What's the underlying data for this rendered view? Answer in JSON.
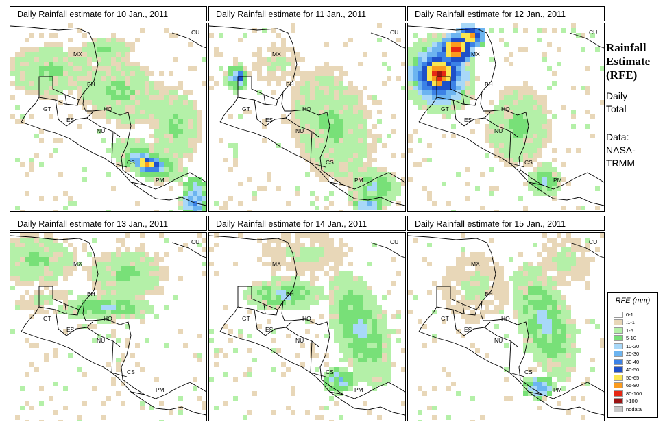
{
  "panels": [
    {
      "title": "Daily Rainfall estimate for  10 Jan., 2011"
    },
    {
      "title": "Daily Rainfall estimate for  11 Jan., 2011"
    },
    {
      "title": "Daily Rainfall estimate for  12 Jan., 2011"
    },
    {
      "title": "Daily Rainfall estimate for  13 Jan., 2011"
    },
    {
      "title": "Daily Rainfall estimate for  14 Jan., 2011"
    },
    {
      "title": "Daily Rainfall estimate for  15 Jan., 2011"
    }
  ],
  "country_labels": [
    "MX",
    "CU",
    "BH",
    "GT",
    "HO",
    "ES",
    "NU",
    "CS",
    "PM"
  ],
  "side": {
    "title_line1": "Rainfall",
    "title_line2": "Estimate",
    "title_line3": "(RFE)",
    "subtitle_line1": "Daily",
    "subtitle_line2": "Total",
    "source_line1": "Data:",
    "source_line2": "NASA-",
    "source_line3": "TRMM"
  },
  "legend": {
    "title": "RFE (mm)",
    "items": [
      {
        "label": "0-1",
        "color": "#ffffff"
      },
      {
        "label": ".1-1",
        "color": "#e8d7b8"
      },
      {
        "label": "1-5",
        "color": "#b4f0a8"
      },
      {
        "label": "5-10",
        "color": "#78e078"
      },
      {
        "label": "10-20",
        "color": "#a8d8f8"
      },
      {
        "label": "20-30",
        "color": "#6cb4f0"
      },
      {
        "label": "30-40",
        "color": "#3c82e6"
      },
      {
        "label": "40-50",
        "color": "#1e50c8"
      },
      {
        "label": "50-65",
        "color": "#fae650"
      },
      {
        "label": "65-80",
        "color": "#fa9b1e"
      },
      {
        "label": "80-100",
        "color": "#e62814"
      },
      {
        "label": ">100",
        "color": "#9b1414"
      },
      {
        "label": "nodata",
        "color": "#c8c8c8"
      }
    ]
  }
}
